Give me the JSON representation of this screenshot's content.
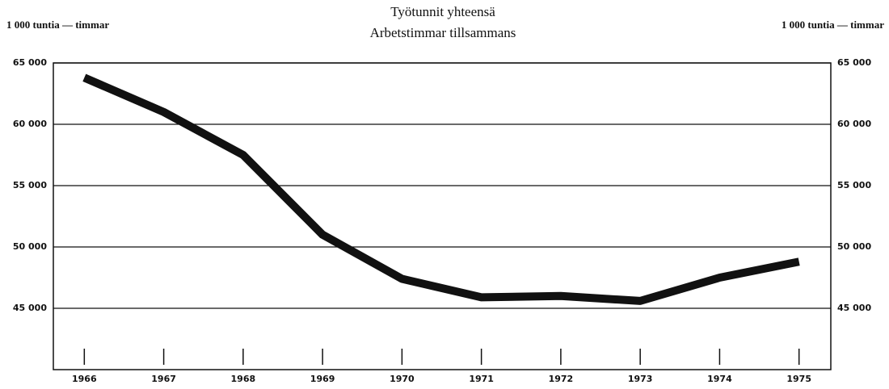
{
  "chart_data": {
    "type": "line",
    "title": "Työtunnit yhteensä",
    "subtitle": "Arbetstimmar tillsammans",
    "y_label": "1 000 tuntia — timmar",
    "x": [
      1966,
      1967,
      1968,
      1969,
      1970,
      1971,
      1972,
      1973,
      1974,
      1975
    ],
    "series": [
      {
        "name": "Työtunnit yhteensä",
        "color": "#111111",
        "values": [
          63800,
          61000,
          57500,
          51000,
          47400,
          45900,
          46000,
          45600,
          47500,
          48800
        ]
      }
    ],
    "xlim": [
      1965.61,
      1975.4
    ],
    "xticks": [
      1966,
      1967,
      1968,
      1969,
      1970,
      1971,
      1972,
      1973,
      1974,
      1975
    ],
    "ylim": [
      40000,
      65000
    ],
    "yticks": [
      {
        "value": 45000,
        "label": "45 000"
      },
      {
        "value": 50000,
        "label": "50 000"
      },
      {
        "value": 55000,
        "label": "55 000"
      },
      {
        "value": 60000,
        "label": "60 000"
      },
      {
        "value": 65000,
        "label": "65 000"
      }
    ],
    "grid": true
  }
}
